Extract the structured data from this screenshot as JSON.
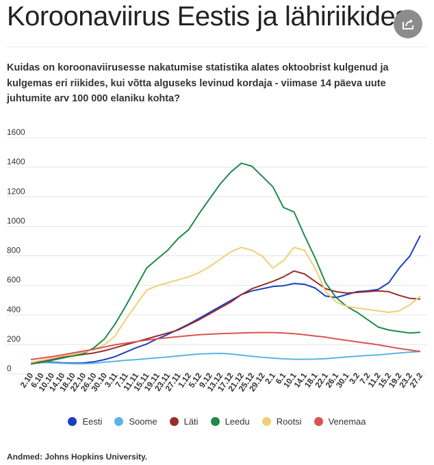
{
  "header": {
    "title": "Koroonaviirus Eestis ja lähiriikides",
    "subtitle": "Kuidas on koroonaviirusesse nakatumise statistika alates oktoobrist kulgenud ja kulgemas eri riikides, kui võtta alguseks levinud kordaja - viimase 14 päeva uute juhtumite arv 100 000 elaniku kohta?",
    "share_icon": "share-icon"
  },
  "footer": {
    "source": "Andmed: Johns Hopkins University."
  },
  "chart_data": {
    "type": "line",
    "title": "",
    "xlabel": "",
    "ylabel": "",
    "ylim": [
      0,
      1600
    ],
    "yticks": [
      "0",
      "200",
      "400",
      "600",
      "800",
      "1000",
      "1200",
      "1400",
      "1600"
    ],
    "grid": true,
    "legend_position": "bottom-center",
    "categories": [
      "2.10",
      "6.10",
      "10.10",
      "14.10",
      "18.10",
      "22.10",
      "26.10",
      "30.10",
      "3.11",
      "7.11",
      "11.11",
      "15.11",
      "19.11",
      "23.11",
      "27.11",
      "1.12",
      "5.12",
      "9.12",
      "13.12",
      "17.12",
      "21.12",
      "25.12",
      "29.12",
      "2.1",
      "6.1",
      "10.1",
      "14.1",
      "18.1",
      "22.1",
      "26.1",
      "30.1",
      "3.2",
      "7.2",
      "11.2",
      "15.2",
      "19.2",
      "23.2",
      "27.2"
    ],
    "series": [
      {
        "name": "Eesti",
        "color": "#1a3fbf",
        "values": [
          40,
          45,
          42,
          38,
          36,
          37,
          45,
          60,
          80,
          110,
          140,
          165,
          200,
          230,
          265,
          300,
          340,
          380,
          420,
          460,
          500,
          525,
          540,
          555,
          560,
          575,
          570,
          545,
          490,
          480,
          500,
          520,
          525,
          535,
          580,
          680,
          760,
          900
        ]
      },
      {
        "name": "Soome",
        "color": "#5ab4e5",
        "values": [
          40,
          40,
          38,
          35,
          32,
          32,
          35,
          42,
          48,
          55,
          60,
          66,
          72,
          78,
          85,
          92,
          98,
          100,
          102,
          98,
          90,
          82,
          75,
          70,
          65,
          62,
          62,
          63,
          66,
          72,
          78,
          83,
          88,
          92,
          98,
          105,
          110,
          115
        ]
      },
      {
        "name": "Läti",
        "color": "#9b2c2c",
        "values": [
          30,
          45,
          60,
          75,
          85,
          95,
          105,
          120,
          140,
          160,
          180,
          200,
          220,
          240,
          260,
          295,
          330,
          370,
          410,
          450,
          500,
          540,
          565,
          590,
          620,
          660,
          640,
          590,
          540,
          520,
          510,
          515,
          520,
          525,
          520,
          495,
          475,
          470
        ]
      },
      {
        "name": "Leedu",
        "color": "#1e8a4c",
        "values": [
          30,
          40,
          55,
          70,
          85,
          100,
          140,
          200,
          300,
          420,
          550,
          680,
          740,
          800,
          880,
          940,
          1050,
          1150,
          1250,
          1330,
          1390,
          1370,
          1300,
          1230,
          1090,
          1060,
          900,
          750,
          580,
          480,
          420,
          380,
          330,
          280,
          260,
          250,
          240,
          245
        ]
      },
      {
        "name": "Rootsi",
        "color": "#f0cf74",
        "values": [
          40,
          55,
          70,
          85,
          95,
          110,
          130,
          160,
          220,
          330,
          430,
          530,
          560,
          580,
          600,
          620,
          650,
          690,
          740,
          790,
          820,
          800,
          760,
          680,
          730,
          820,
          800,
          680,
          520,
          450,
          420,
          410,
          400,
          390,
          380,
          390,
          430,
          490
        ]
      },
      {
        "name": "Venemaa",
        "color": "#d9534f",
        "values": [
          60,
          70,
          80,
          92,
          105,
          118,
          130,
          145,
          160,
          170,
          182,
          192,
          200,
          208,
          215,
          222,
          228,
          232,
          236,
          238,
          240,
          242,
          243,
          243,
          240,
          235,
          228,
          220,
          212,
          200,
          190,
          180,
          170,
          160,
          148,
          135,
          125,
          115
        ]
      }
    ]
  }
}
